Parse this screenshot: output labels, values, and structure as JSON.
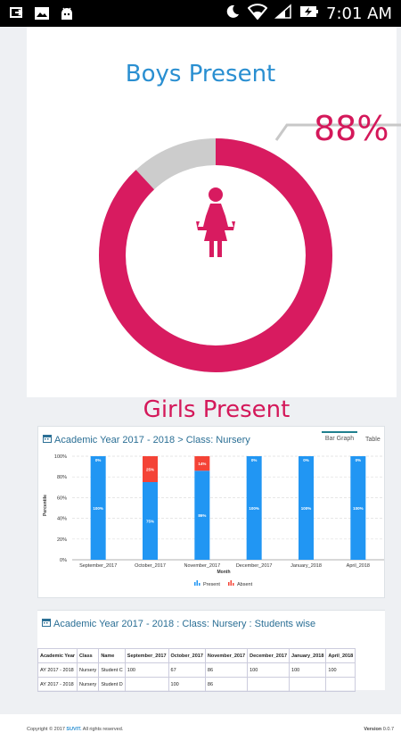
{
  "status": {
    "time": "7:01 AM"
  },
  "summary": {
    "boys_title": "Boys Present",
    "girls_title": "Girls Present",
    "girls_percent_label": "88%",
    "girls_present_fraction": 0.88,
    "ring_color": "#d81b60",
    "rest_color": "#cccccc"
  },
  "chart_panel": {
    "heading": "Academic Year 2017 - 2018 > Class: Nursery",
    "tabs": [
      {
        "label": "Bar Graph",
        "active": true
      },
      {
        "label": "Table",
        "active": false
      }
    ]
  },
  "chart_data": {
    "type": "bar",
    "stacked": true,
    "categories": [
      "September_2017",
      "October_2017",
      "November_2017",
      "December_2017",
      "January_2018",
      "April_2018"
    ],
    "series": [
      {
        "name": "Present",
        "color": "#2196f3",
        "values": [
          100,
          75,
          86,
          100,
          100,
          100
        ]
      },
      {
        "name": "Absent",
        "color": "#f44336",
        "values": [
          0,
          25,
          14,
          0,
          0,
          0
        ]
      }
    ],
    "data_labels": {
      "present": [
        "100%",
        "75%",
        "86%",
        "100%",
        "100%",
        "100%"
      ],
      "absent": [
        "0%",
        "25%",
        "14%",
        "0%",
        "0%",
        "0%"
      ]
    },
    "y_ticks": [
      "0%",
      "20%",
      "40%",
      "60%",
      "80%",
      "100%"
    ],
    "ylim": [
      0,
      100
    ],
    "xlabel": "Month",
    "ylabel": "Percentile",
    "legend_position": "bottom",
    "grid": true
  },
  "students_panel": {
    "heading": "Academic Year 2017 - 2018 : Class: Nursery : Students wise",
    "columns": [
      "Academic Year",
      "Class",
      "Name",
      "September_2017",
      "October_2017",
      "November_2017",
      "December_2017",
      "January_2018",
      "April_2018"
    ],
    "rows": [
      [
        "AY 2017 - 2018",
        "Nursery",
        "Student C",
        "100",
        "67",
        "86",
        "100",
        "100",
        "100"
      ],
      [
        "AY 2017 - 2018",
        "Nursery",
        "Student D",
        "",
        "100",
        "86",
        "",
        "",
        ""
      ]
    ]
  },
  "footer": {
    "copyright_prefix": "Copyright © 2017",
    "brand": "SUVIT.",
    "rights": "All rights reserved.",
    "version_label": "Version",
    "version": "0.0.7"
  }
}
